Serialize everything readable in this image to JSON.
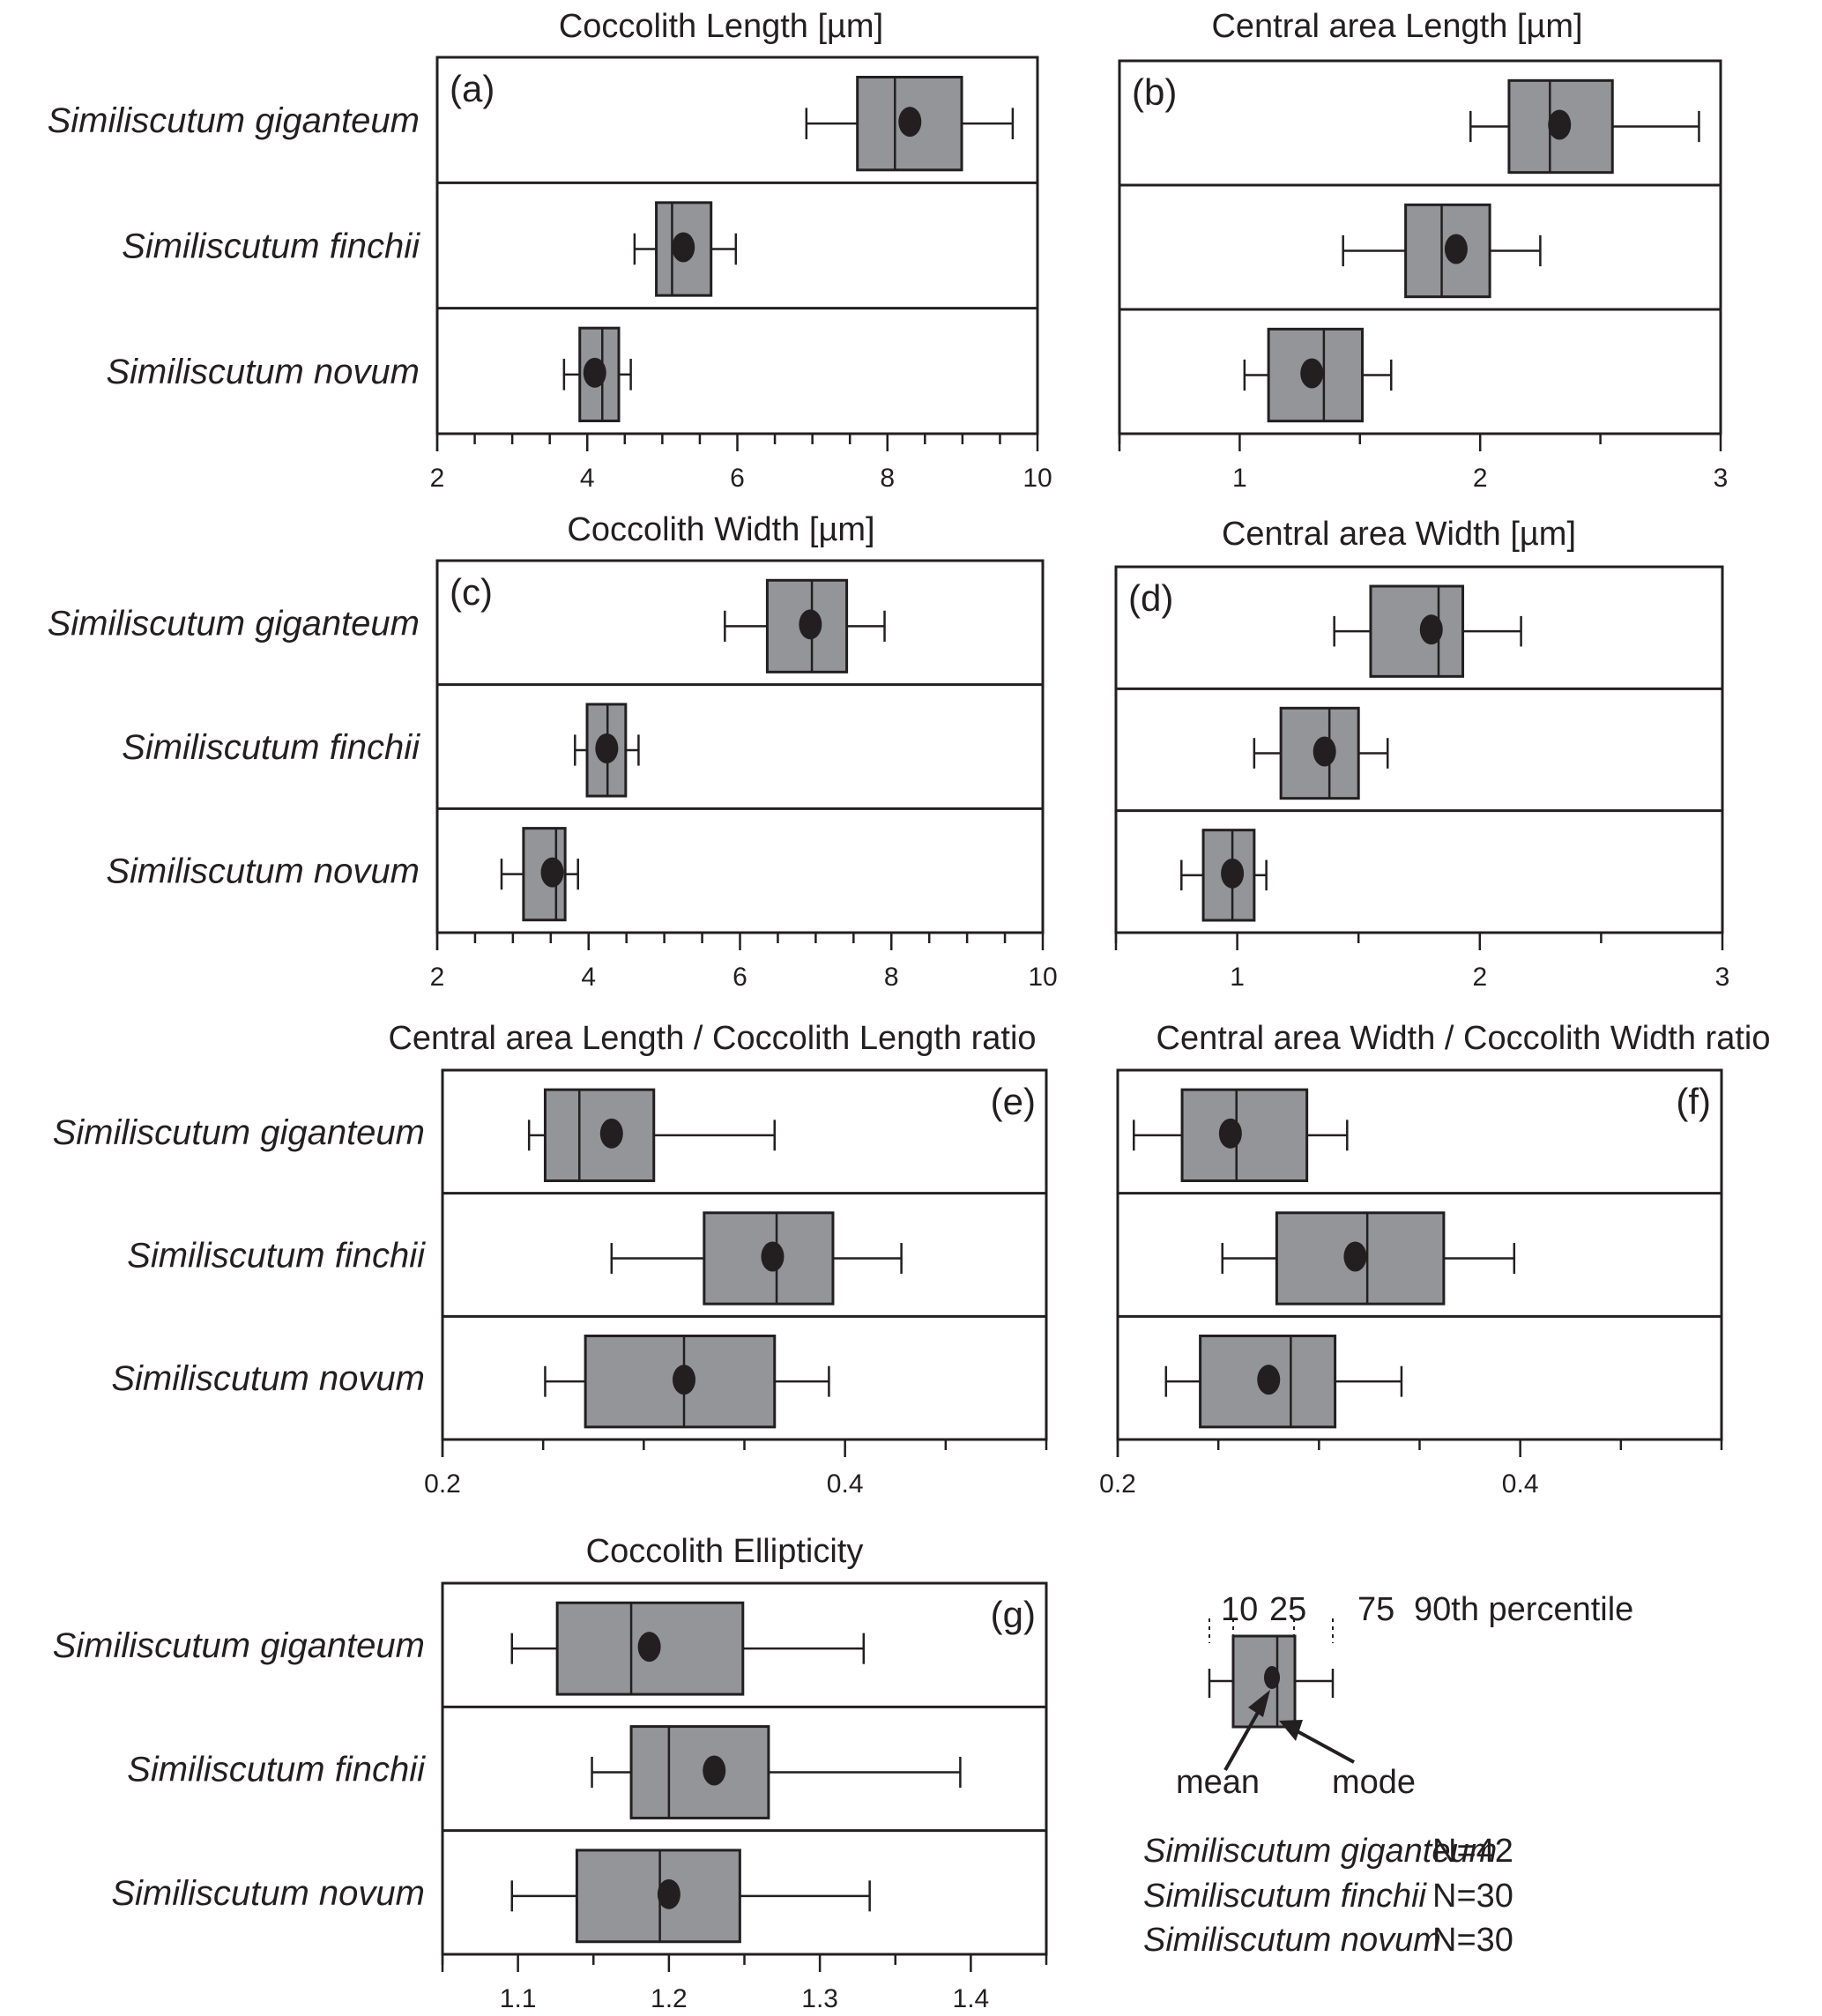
{
  "figure": {
    "species": [
      "Similiscutum giganteum",
      "Similiscutum finchii",
      "Similiscutum novum"
    ],
    "colors": {
      "box_fill": "#939598",
      "line": "#231f20",
      "mean_marker": "#231f20",
      "background": "#ffffff"
    }
  },
  "chart_data": [
    {
      "type": "boxplot",
      "panel": "(a)",
      "title": "Coccolith Length [µm]",
      "xlim": [
        2,
        10
      ],
      "major_ticks": [
        2,
        4,
        6,
        8,
        10
      ],
      "tick_labels": [
        "2",
        "4",
        "6",
        "8",
        "10"
      ],
      "minor_ticks": [
        2.5,
        3,
        3.5,
        4.5,
        5,
        5.5,
        6.5,
        7,
        7.5,
        8.5,
        9,
        9.5
      ],
      "series": [
        {
          "name": "Similiscutum giganteum",
          "p10": 6.92,
          "p25": 7.6,
          "mode": 8.1,
          "mean": 8.3,
          "p75": 8.99,
          "p90": 9.67
        },
        {
          "name": "Similiscutum finchii",
          "p10": 4.63,
          "p25": 4.92,
          "mode": 5.13,
          "mean": 5.28,
          "p75": 5.65,
          "p90": 5.98
        },
        {
          "name": "Similiscutum novum",
          "p10": 3.69,
          "p25": 3.9,
          "mode": 4.2,
          "mean": 4.1,
          "p75": 4.42,
          "p90": 4.58
        }
      ]
    },
    {
      "type": "boxplot",
      "panel": "(b)",
      "title": "Central area Length [µm]",
      "xlim": [
        0.5,
        3
      ],
      "major_ticks": [
        1,
        2,
        3
      ],
      "tick_labels": [
        "1",
        "2",
        "3"
      ],
      "minor_ticks": [
        0.5,
        1.5,
        2.5
      ],
      "series": [
        {
          "name": "Similiscutum giganteum",
          "p10": 1.96,
          "p25": 2.12,
          "mode": 2.29,
          "mean": 2.33,
          "p75": 2.55,
          "p90": 2.91
        },
        {
          "name": "Similiscutum finchii",
          "p10": 1.43,
          "p25": 1.69,
          "mode": 1.84,
          "mean": 1.9,
          "p75": 2.04,
          "p90": 2.25
        },
        {
          "name": "Similiscutum novum",
          "p10": 1.02,
          "p25": 1.12,
          "mode": 1.35,
          "mean": 1.3,
          "p75": 1.51,
          "p90": 1.63
        }
      ]
    },
    {
      "type": "boxplot",
      "panel": "(c)",
      "title": "Coccolith Width [µm]",
      "xlim": [
        2,
        10
      ],
      "major_ticks": [
        2,
        4,
        6,
        8,
        10
      ],
      "tick_labels": [
        "2",
        "4",
        "6",
        "8",
        "10"
      ],
      "minor_ticks": [
        2.5,
        3,
        3.5,
        4.5,
        5,
        5.5,
        6.5,
        7,
        7.5,
        8.5,
        9,
        9.5
      ],
      "series": [
        {
          "name": "Similiscutum giganteum",
          "p10": 5.8,
          "p25": 6.36,
          "mode": 6.95,
          "mean": 6.93,
          "p75": 7.41,
          "p90": 7.91
        },
        {
          "name": "Similiscutum finchii",
          "p10": 3.82,
          "p25": 3.98,
          "mode": 4.25,
          "mean": 4.24,
          "p75": 4.49,
          "p90": 4.66
        },
        {
          "name": "Similiscutum novum",
          "p10": 2.85,
          "p25": 3.14,
          "mode": 3.57,
          "mean": 3.52,
          "p75": 3.69,
          "p90": 3.86
        }
      ]
    },
    {
      "type": "boxplot",
      "panel": "(d)",
      "title": "Central area Width [µm]",
      "xlim": [
        0.5,
        3
      ],
      "major_ticks": [
        1,
        2,
        3
      ],
      "tick_labels": [
        "1",
        "2",
        "3"
      ],
      "minor_ticks": [
        0.5,
        1.5,
        2.5
      ],
      "series": [
        {
          "name": "Similiscutum giganteum",
          "p10": 1.4,
          "p25": 1.55,
          "mode": 1.83,
          "mean": 1.8,
          "p75": 1.93,
          "p90": 2.17
        },
        {
          "name": "Similiscutum finchii",
          "p10": 1.07,
          "p25": 1.18,
          "mode": 1.38,
          "mean": 1.36,
          "p75": 1.5,
          "p90": 1.62
        },
        {
          "name": "Similiscutum novum",
          "p10": 0.77,
          "p25": 0.86,
          "mode": 0.98,
          "mean": 0.98,
          "p75": 1.07,
          "p90": 1.12
        }
      ]
    },
    {
      "type": "boxplot",
      "panel": "(e)",
      "title": "Central area Length / Coccolith Length ratio",
      "xlim": [
        0.2,
        0.5
      ],
      "major_ticks": [
        0.2,
        0.4
      ],
      "tick_labels": [
        "0.2",
        "0.4"
      ],
      "minor_ticks": [
        0.25,
        0.3,
        0.35,
        0.45,
        0.5
      ],
      "series": [
        {
          "name": "Similiscutum giganteum",
          "p10": 0.243,
          "p25": 0.251,
          "mode": 0.268,
          "mean": 0.284,
          "p75": 0.305,
          "p90": 0.365
        },
        {
          "name": "Similiscutum finchii",
          "p10": 0.284,
          "p25": 0.33,
          "mode": 0.366,
          "mean": 0.364,
          "p75": 0.394,
          "p90": 0.428
        },
        {
          "name": "Similiscutum novum",
          "p10": 0.251,
          "p25": 0.271,
          "mode": 0.32,
          "mean": 0.32,
          "p75": 0.365,
          "p90": 0.392
        }
      ]
    },
    {
      "type": "boxplot",
      "panel": "(f)",
      "title": "Central area Width / Coccolith Width ratio",
      "xlim": [
        0.2,
        0.5
      ],
      "major_ticks": [
        0.2,
        0.4
      ],
      "tick_labels": [
        "0.2",
        "0.4"
      ],
      "minor_ticks": [
        0.25,
        0.3,
        0.35,
        0.45,
        0.5
      ],
      "series": [
        {
          "name": "Similiscutum giganteum",
          "p10": 0.208,
          "p25": 0.232,
          "mode": 0.259,
          "mean": 0.256,
          "p75": 0.294,
          "p90": 0.314
        },
        {
          "name": "Similiscutum finchii",
          "p10": 0.252,
          "p25": 0.279,
          "mode": 0.324,
          "mean": 0.318,
          "p75": 0.362,
          "p90": 0.397
        },
        {
          "name": "Similiscutum novum",
          "p10": 0.224,
          "p25": 0.241,
          "mode": 0.286,
          "mean": 0.275,
          "p75": 0.308,
          "p90": 0.341
        }
      ]
    },
    {
      "type": "boxplot",
      "panel": "(g)",
      "title": "Coccolith Ellipticity",
      "xlim": [
        1.05,
        1.45
      ],
      "major_ticks": [
        1.1,
        1.2,
        1.3,
        1.4
      ],
      "tick_labels": [
        "1.1",
        "1.2",
        "1.3",
        "1.4"
      ],
      "minor_ticks": [
        1.05,
        1.15,
        1.25,
        1.35,
        1.45
      ],
      "series": [
        {
          "name": "Similiscutum giganteum",
          "p10": 1.096,
          "p25": 1.126,
          "mode": 1.175,
          "mean": 1.187,
          "p75": 1.249,
          "p90": 1.329
        },
        {
          "name": "Similiscutum finchii",
          "p10": 1.149,
          "p25": 1.175,
          "mode": 1.2,
          "mean": 1.23,
          "p75": 1.266,
          "p90": 1.393
        },
        {
          "name": "Similiscutum novum",
          "p10": 1.096,
          "p25": 1.139,
          "mode": 1.194,
          "mean": 1.2,
          "p75": 1.247,
          "p90": 1.333
        }
      ]
    }
  ],
  "legend": {
    "percentile_labels": {
      "p10": "10",
      "p25": "25",
      "p75": "75",
      "p90": "90th percentile"
    },
    "mean_label": "mean",
    "mode_label": "mode",
    "sample_sizes": [
      {
        "species": "Similiscutum giganteum",
        "n": "N=42"
      },
      {
        "species": "Similiscutum finchii",
        "n": "N=30"
      },
      {
        "species": "Similiscutum novum",
        "n": "N=30"
      }
    ]
  }
}
